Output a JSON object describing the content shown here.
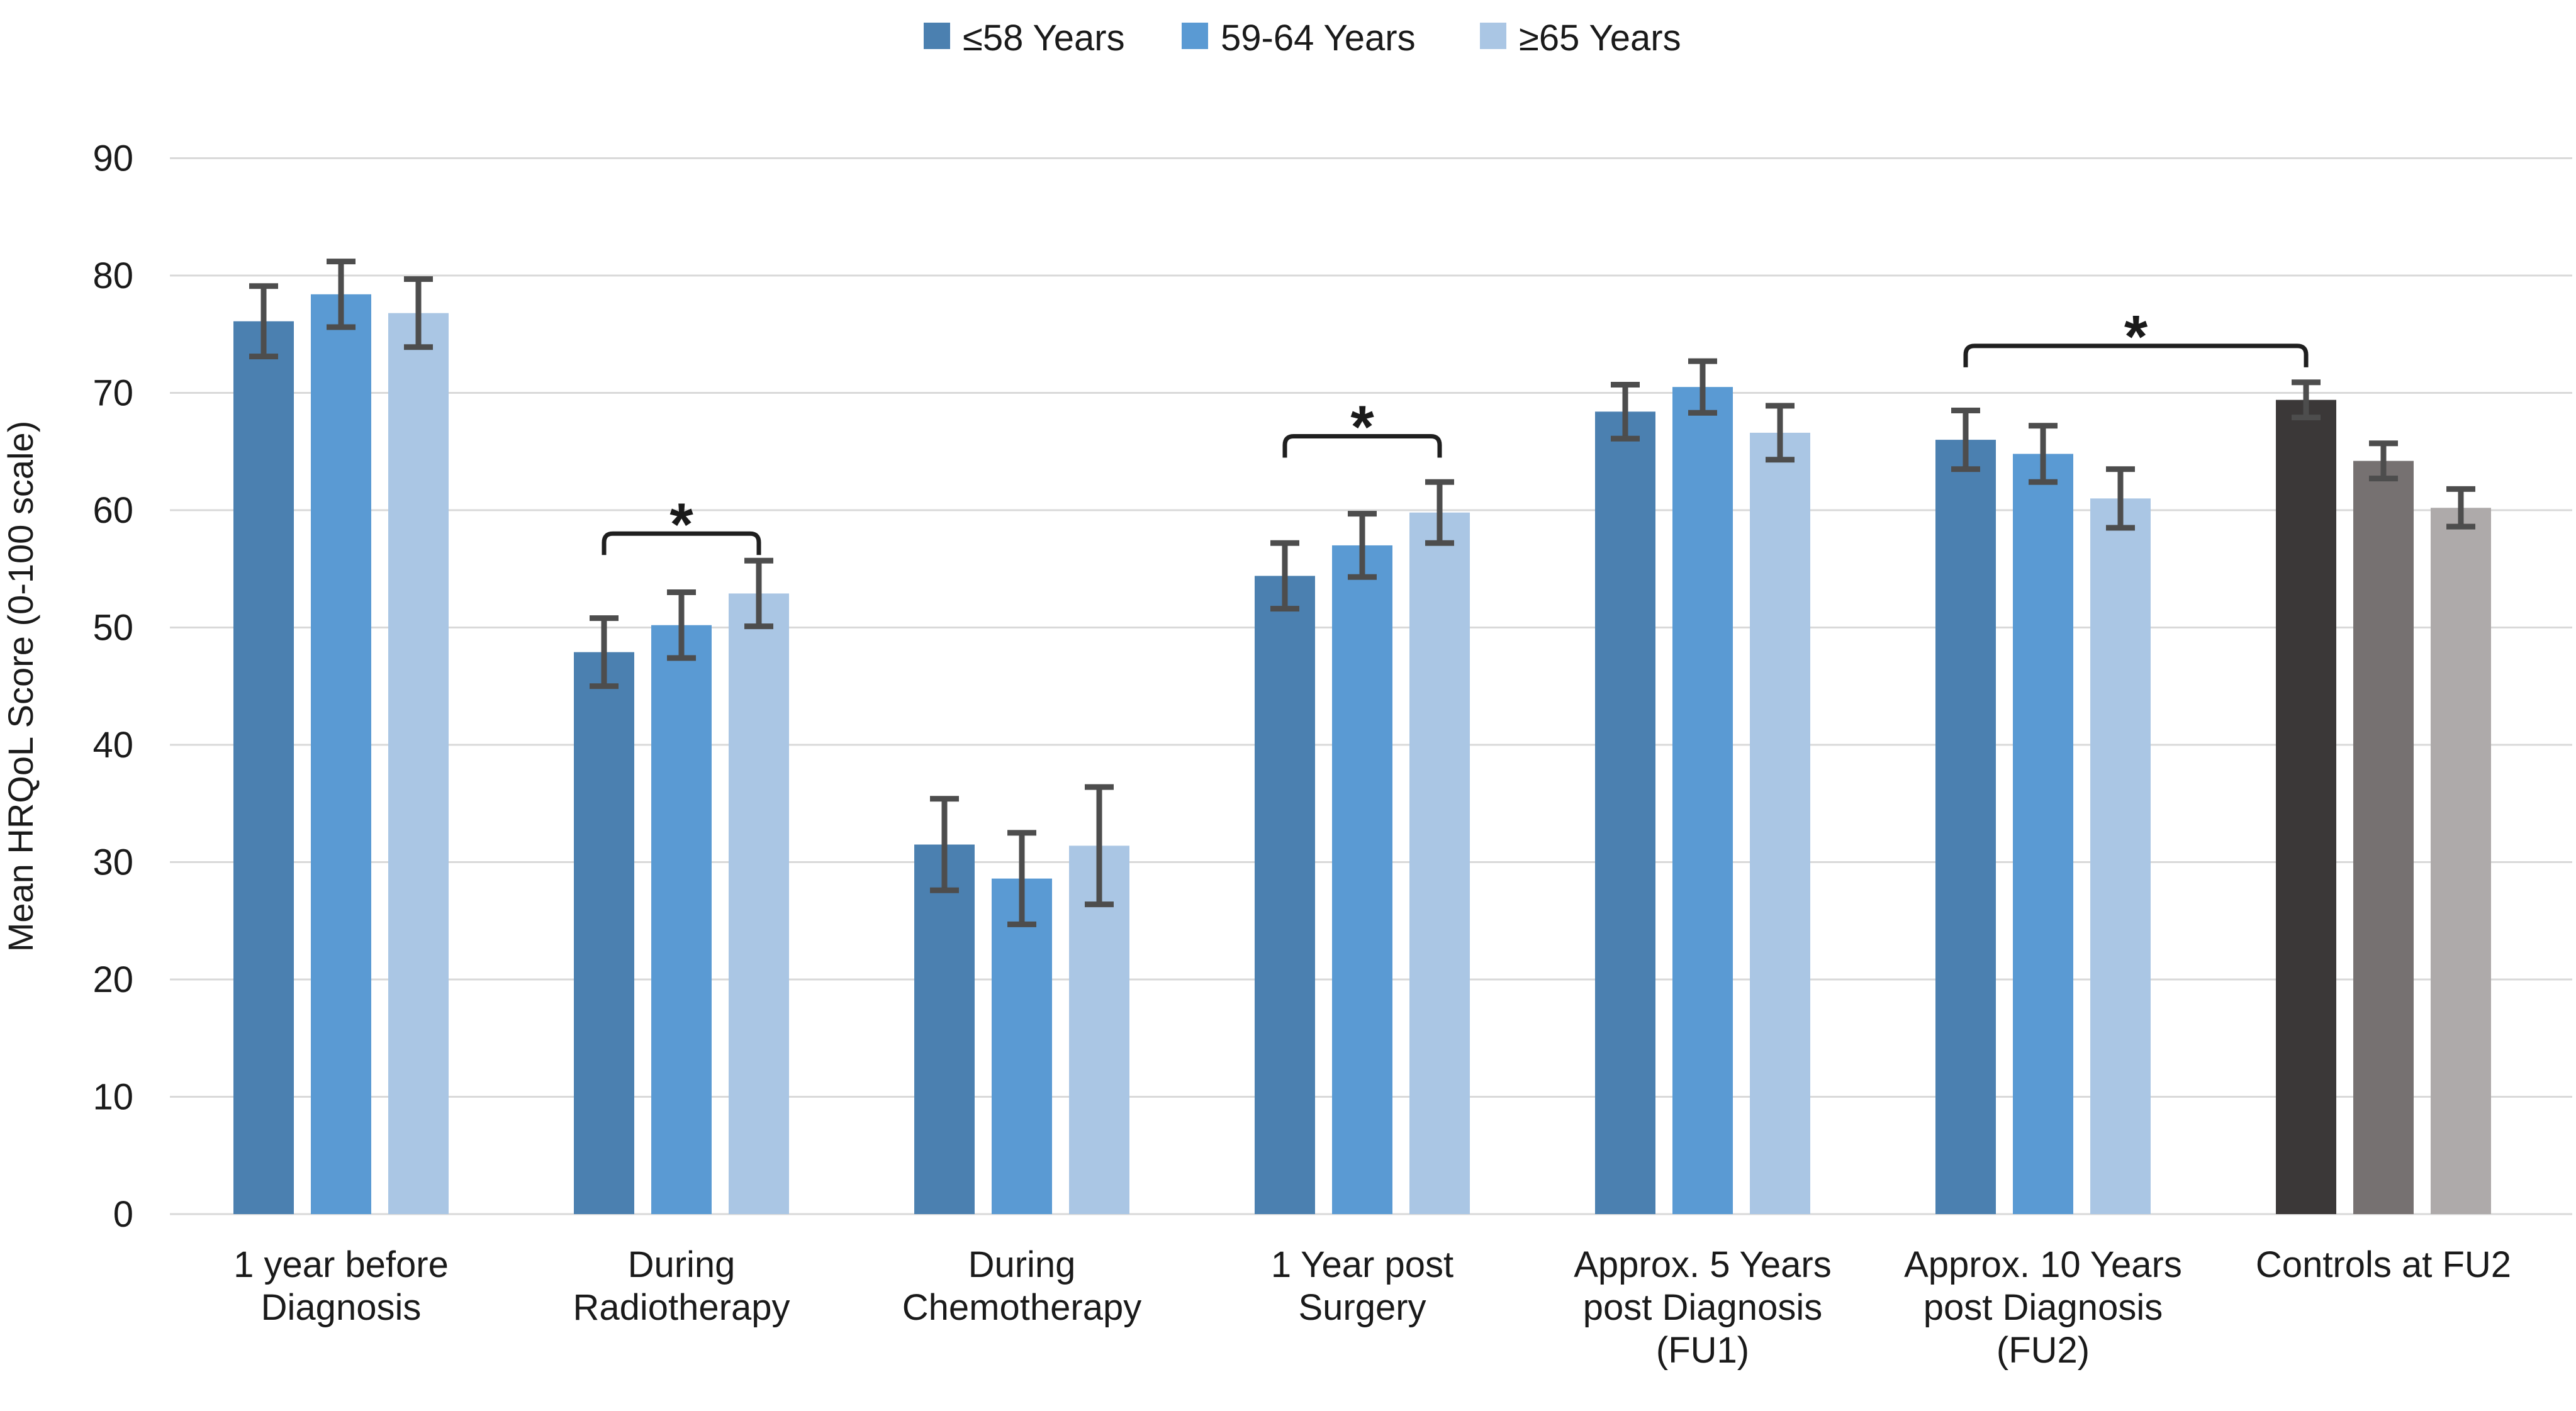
{
  "chart_data": {
    "type": "bar",
    "title": "",
    "ylabel": "Mean HRQoL Score (0-100 scale)",
    "xlabel": "",
    "ylim": [
      0,
      90
    ],
    "ytick_step": 10,
    "grid": "horizontal",
    "legend_position": "top-center",
    "legend": [
      {
        "label": "≤58 Years",
        "color": "#4b80b0"
      },
      {
        "label": "59-64 Years",
        "color": "#5a9ad3"
      },
      {
        "label": "≥65 Years",
        "color": "#aac6e4"
      }
    ],
    "groups": [
      {
        "label": "1 year before Diagnosis",
        "label_lines": [
          "1 year before",
          "Diagnosis"
        ],
        "values": [
          76.1,
          78.4,
          76.8
        ],
        "errors": [
          3.0,
          2.8,
          2.9
        ]
      },
      {
        "label": "During Radiotherapy",
        "label_lines": [
          "During",
          "Radiotherapy"
        ],
        "values": [
          47.9,
          50.2,
          52.9
        ],
        "errors": [
          2.9,
          2.8,
          2.8
        ]
      },
      {
        "label": "During Chemotherapy",
        "label_lines": [
          "During",
          "Chemotherapy"
        ],
        "values": [
          31.5,
          28.6,
          31.4
        ],
        "errors": [
          3.9,
          3.9,
          5.0
        ]
      },
      {
        "label": "1 Year post Surgery",
        "label_lines": [
          "1 Year post",
          "Surgery"
        ],
        "values": [
          54.4,
          57.0,
          59.8
        ],
        "errors": [
          2.8,
          2.7,
          2.6
        ]
      },
      {
        "label": "Approx. 5 Years post Diagnosis (FU1)",
        "label_lines": [
          "Approx. 5 Years",
          "post Diagnosis",
          "(FU1)"
        ],
        "values": [
          68.4,
          70.5,
          66.6
        ],
        "errors": [
          2.3,
          2.2,
          2.3
        ]
      },
      {
        "label": "Approx. 10 Years post Diagnosis (FU2)",
        "label_lines": [
          "Approx. 10 Years",
          "post Diagnosis",
          "(FU2)"
        ],
        "values": [
          66.0,
          64.8,
          61.0
        ],
        "errors": [
          2.5,
          2.4,
          2.5
        ]
      },
      {
        "label": "Controls at FU2",
        "label_lines": [
          "Controls at FU2"
        ],
        "values": [
          69.4,
          64.2,
          60.2
        ],
        "errors": [
          1.5,
          1.5,
          1.6
        ],
        "bar_colors": [
          "#3b3838",
          "#767171",
          "#aeaaaa"
        ]
      }
    ],
    "significance": [
      {
        "from_group": 1,
        "from_bar": 0,
        "to_group": 1,
        "to_bar": 2,
        "y": 58.0,
        "label": "*"
      },
      {
        "from_group": 3,
        "from_bar": 0,
        "to_group": 3,
        "to_bar": 2,
        "y": 66.3,
        "label": "*"
      },
      {
        "from_group": 5,
        "from_bar": 0,
        "to_group": 6,
        "to_bar": 0,
        "y": 74.0,
        "label": "*"
      }
    ],
    "yticks": [
      0,
      10,
      20,
      30,
      40,
      50,
      60,
      70,
      80,
      90
    ],
    "colors": {
      "gridline": "#d9d9d9",
      "error_bar": "#4d4d4d",
      "bracket": "#1f1f1f",
      "text": "#1a1a1a",
      "background": "#ffffff"
    }
  }
}
